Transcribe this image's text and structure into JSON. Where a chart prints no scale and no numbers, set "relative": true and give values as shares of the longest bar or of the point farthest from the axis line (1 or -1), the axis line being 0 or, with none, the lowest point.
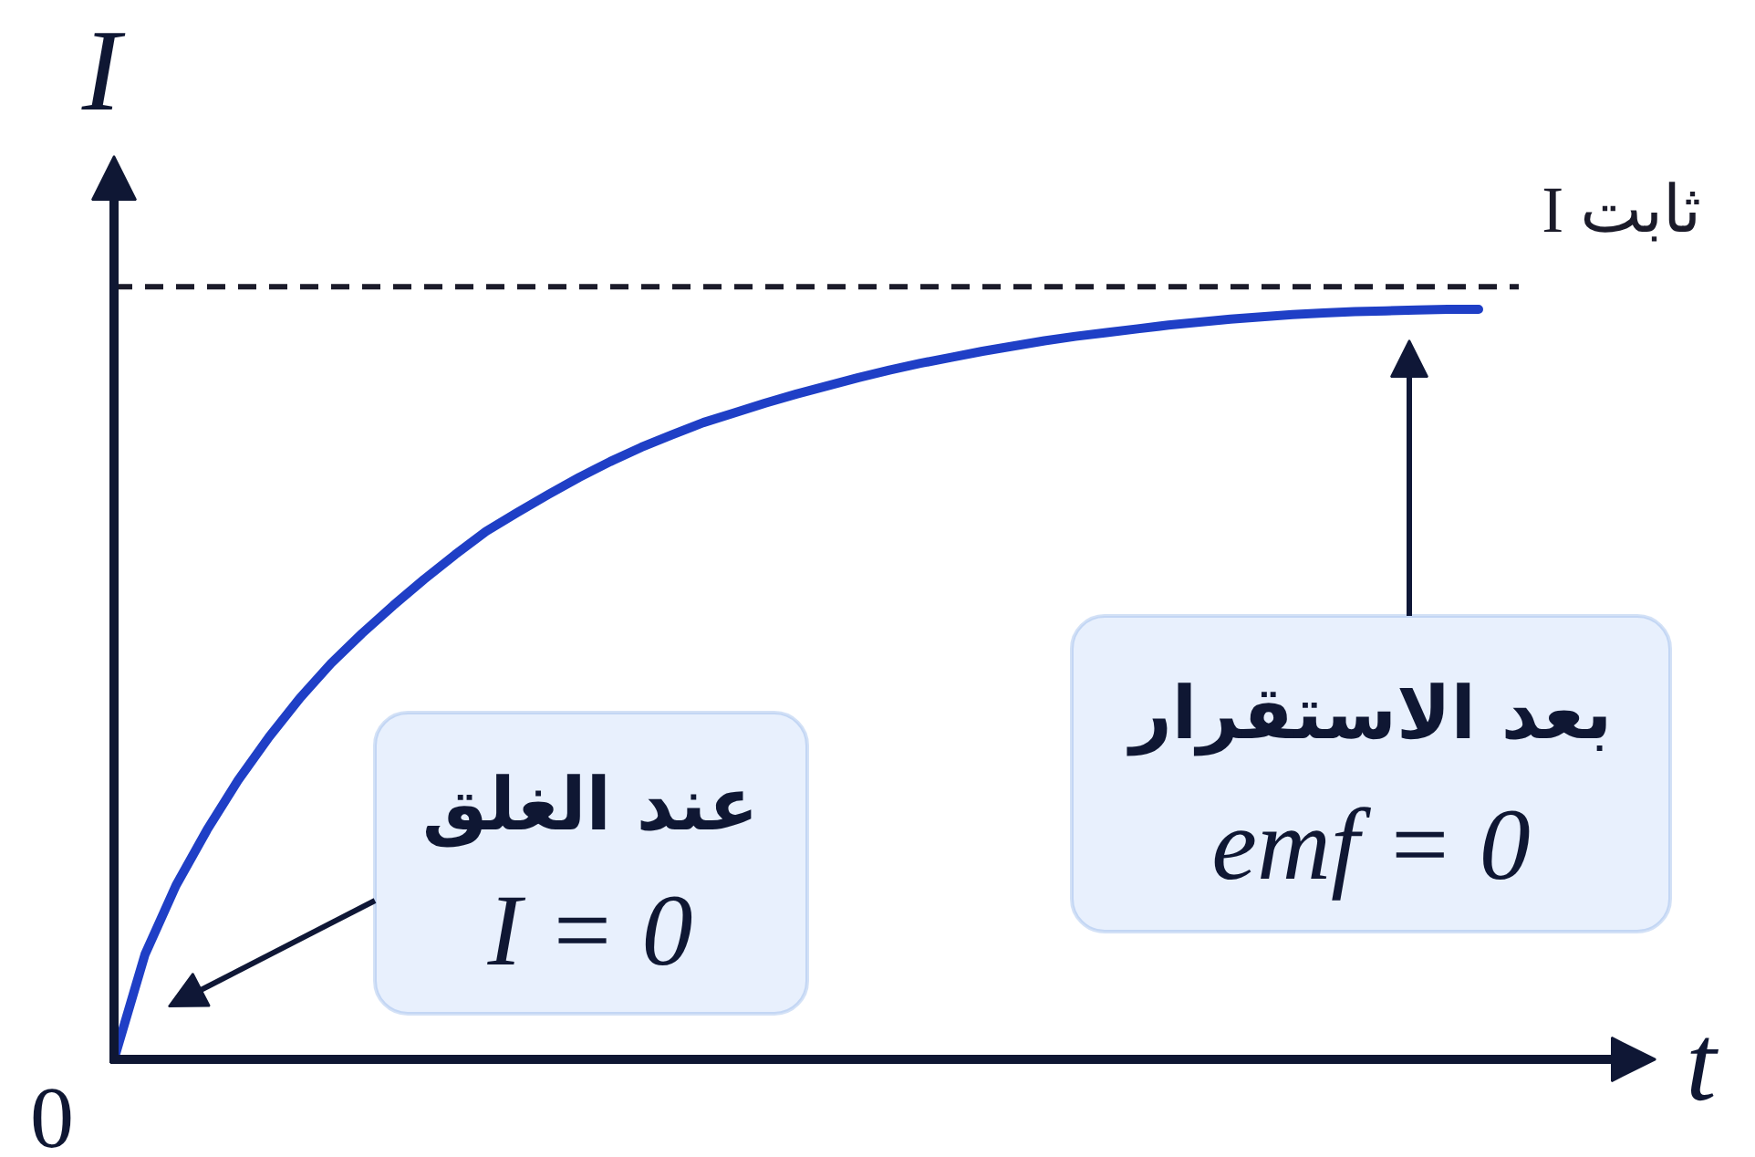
{
  "chart_data": {
    "type": "line",
    "relative": true,
    "xlabel": "t",
    "ylabel": "I",
    "categories": [
      null,
      null,
      null,
      null,
      null,
      null,
      null,
      null,
      null,
      null,
      null,
      null,
      null,
      null,
      null,
      null,
      null,
      null,
      null,
      null,
      null,
      null,
      null,
      null,
      null,
      null,
      null,
      null,
      null,
      null,
      null,
      null,
      null,
      null,
      null,
      null,
      null,
      null,
      null,
      null,
      null,
      null,
      null,
      null,
      null
    ],
    "series": [
      {
        "color": "#1f3fc6",
        "values": [
          0,
          0.14,
          0.232,
          0.306,
          0.372,
          0.43,
          0.482,
          0.528,
          0.568,
          0.605,
          0.64,
          0.673,
          0.704,
          0.729,
          0.753,
          0.776,
          0.797,
          0.816,
          0.833,
          0.849,
          0.862,
          0.875,
          0.887,
          0.898,
          0.909,
          0.919,
          0.928,
          0.936,
          0.944,
          0.951,
          0.958,
          0.964,
          0.969,
          0.974,
          0.979,
          0.983,
          0.987,
          0.99,
          0.993,
          0.995,
          0.997,
          0.998,
          0.999,
          1,
          1
        ]
      }
    ],
    "ref_lines": [
      {
        "axis": "y",
        "value": 1.03,
        "label": "I ثابت",
        "color": "#1b1b2a",
        "line_style": "dashed"
      }
    ],
    "annotations": [
      "عند الغلق\nI = 0",
      "بعد الاستقرار\nemf = 0",
      "0"
    ]
  }
}
